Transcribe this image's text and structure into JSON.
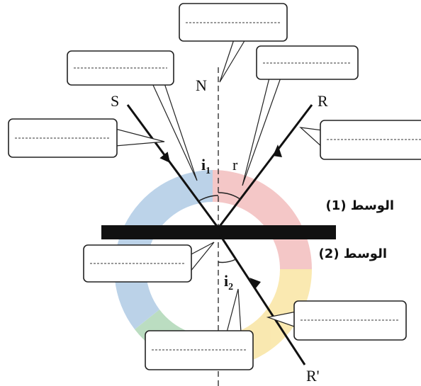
{
  "labels": {
    "normal": "N",
    "incident": "S",
    "reflected": "R",
    "refracted": "R'",
    "incidence_angle": "i",
    "incidence_sub": "1",
    "reflection_angle": "r",
    "refraction_angle": "i",
    "refraction_sub": "2",
    "medium_1": "الوسط (1)",
    "medium_2": "الوسط (2)"
  }
}
